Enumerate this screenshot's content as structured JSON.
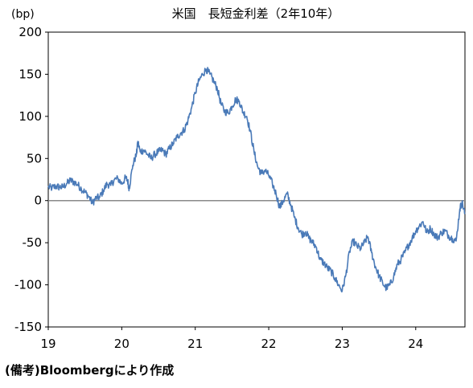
{
  "chart_data": {
    "type": "line",
    "title": "米国　長短金利差（2年10年）",
    "ylabel": "(bp)",
    "xlabel": "",
    "source_note": "(備考)Bloombergにより作成",
    "ylim": [
      -150,
      200
    ],
    "xlim": [
      19,
      24.67
    ],
    "y_ticks": [
      "200",
      "150",
      "100",
      "50",
      "0",
      "-50",
      "-100",
      "-150"
    ],
    "x_ticks": [
      "19",
      "20",
      "21",
      "22",
      "23",
      "24"
    ],
    "grid": false,
    "legend": "none",
    "zero_line": true,
    "colors": {
      "line": "#4a7ab8",
      "zero_line": "#8a8a8a",
      "frame": "#000000"
    },
    "series": [
      {
        "x": [
          19.0,
          19.05,
          19.1,
          19.15,
          19.2,
          19.25,
          19.3,
          19.35,
          19.4,
          19.45,
          19.5,
          19.55,
          19.6,
          19.65,
          19.7,
          19.75,
          19.8,
          19.85,
          19.9,
          19.95,
          20.0,
          20.05,
          20.08,
          20.1,
          20.15,
          20.2,
          20.22,
          20.25,
          20.3,
          20.35,
          20.4,
          20.45,
          20.5,
          20.55,
          20.6,
          20.65,
          20.7,
          20.75,
          20.8,
          20.85,
          20.9,
          20.95,
          21.0,
          21.05,
          21.1,
          21.15,
          21.2,
          21.25,
          21.3,
          21.35,
          21.4,
          21.45,
          21.5,
          21.55,
          21.6,
          21.65,
          21.7,
          21.75,
          21.8,
          21.85,
          21.9,
          21.95,
          22.0,
          22.05,
          22.1,
          22.15,
          22.2,
          22.25,
          22.3,
          22.35,
          22.4,
          22.45,
          22.5,
          22.55,
          22.6,
          22.65,
          22.7,
          22.75,
          22.8,
          22.85,
          22.9,
          22.95,
          23.0,
          23.05,
          23.1,
          23.15,
          23.2,
          23.25,
          23.3,
          23.35,
          23.4,
          23.45,
          23.5,
          23.55,
          23.6,
          23.65,
          23.7,
          23.75,
          23.8,
          23.85,
          23.9,
          23.95,
          24.0,
          24.05,
          24.1,
          24.15,
          24.2,
          24.25,
          24.3,
          24.35,
          24.4,
          24.45,
          24.5,
          24.55,
          24.6,
          24.63,
          24.67
        ],
        "values": [
          16,
          15,
          17,
          16,
          16,
          20,
          24,
          22,
          19,
          14,
          10,
          5,
          -3,
          3,
          4,
          12,
          20,
          18,
          25,
          26,
          20,
          27,
          24,
          14,
          42,
          55,
          70,
          58,
          60,
          55,
          50,
          55,
          58,
          60,
          55,
          62,
          68,
          75,
          80,
          84,
          95,
          110,
          128,
          142,
          150,
          156,
          150,
          142,
          133,
          115,
          106,
          104,
          112,
          120,
          118,
          105,
          100,
          82,
          58,
          40,
          32,
          36,
          30,
          20,
          8,
          -8,
          0,
          8,
          -5,
          -20,
          -32,
          -40,
          -37,
          -45,
          -50,
          -56,
          -70,
          -74,
          -80,
          -84,
          -92,
          -100,
          -107,
          -88,
          -60,
          -48,
          -54,
          -57,
          -50,
          -43,
          -62,
          -78,
          -89,
          -98,
          -104,
          -100,
          -90,
          -76,
          -70,
          -62,
          -53,
          -45,
          -36,
          -30,
          -25,
          -38,
          -33,
          -40,
          -44,
          -38,
          -36,
          -42,
          -45,
          -48,
          -10,
          -2,
          -16
        ]
      }
    ]
  }
}
